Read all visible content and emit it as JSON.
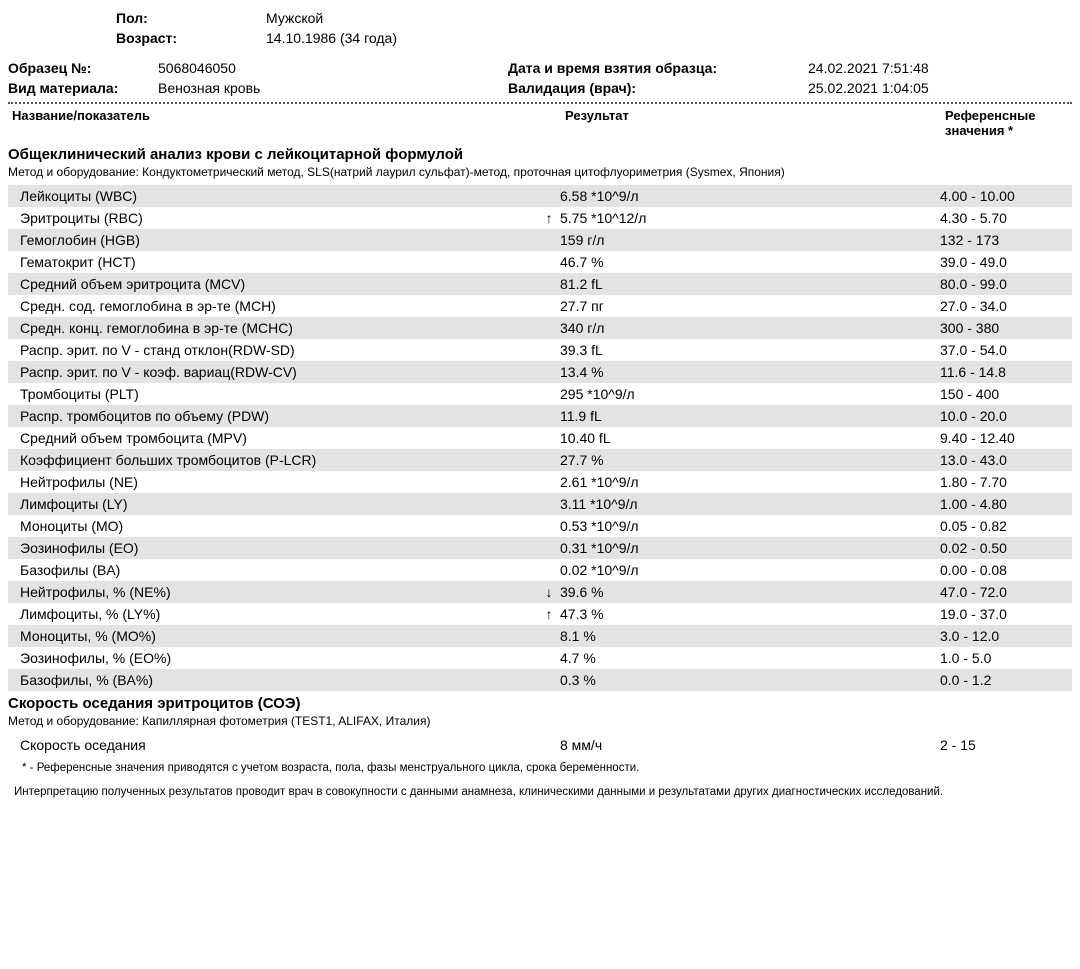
{
  "demographics": {
    "gender_label": "Пол:",
    "gender_value": "Мужской",
    "age_label": "Возраст:",
    "age_value": "14.10.1986 (34 года)"
  },
  "sample": {
    "id_label": "Образец №:",
    "id_value": "5068046050",
    "material_label": "Вид материала:",
    "material_value": "Венозная кровь",
    "collected_label": "Дата и время взятия образца:",
    "collected_value": "24.02.2021   7:51:48",
    "validated_label": "Валидация (врач):",
    "validated_value": "25.02.2021   1:04:05"
  },
  "headers": {
    "name": "Название/показатель",
    "result": "Результат",
    "ref": "Референсные значения *"
  },
  "sections": [
    {
      "title": "Общеклинический анализ крови с лейкоцитарной формулой",
      "method_label": "Метод и оборудование:  ",
      "method_text": "Кондуктометрический метод, SLS(натрий лаурил сульфат)-метод, проточная цитофлуориметрия (Sysmex, Япония)",
      "rows": [
        {
          "name": "Лейкоциты (WBC)",
          "flag": "",
          "result": "6.58 *10^9/л",
          "ref": "4.00 - 10.00",
          "striped": true
        },
        {
          "name": "Эритроциты (RBC)",
          "flag": "↑",
          "result": "5.75 *10^12/л",
          "ref": "4.30 - 5.70",
          "striped": false
        },
        {
          "name": "Гемоглобин (HGB)",
          "flag": "",
          "result": "159 г/л",
          "ref": "132 - 173",
          "striped": true
        },
        {
          "name": "Гематокрит (HCT)",
          "flag": "",
          "result": "46.7 %",
          "ref": "39.0 - 49.0",
          "striped": false
        },
        {
          "name": "Средний объем эритроцита (MCV)",
          "flag": "",
          "result": "81.2 fL",
          "ref": "80.0 - 99.0",
          "striped": true
        },
        {
          "name": "Средн. сод. гемоглобина в эр-те (MCH)",
          "flag": "",
          "result": "27.7 пг",
          "ref": "27.0 - 34.0",
          "striped": false
        },
        {
          "name": "Средн. конц. гемоглобина в эр-те (MCHC)",
          "flag": "",
          "result": "340 г/л",
          "ref": "300 - 380",
          "striped": true
        },
        {
          "name": "Распр. эрит. по V - станд отклон(RDW-SD)",
          "flag": "",
          "result": "39.3 fL",
          "ref": "37.0 - 54.0",
          "striped": false
        },
        {
          "name": "Распр. эрит. по V - коэф. вариац(RDW-CV)",
          "flag": "",
          "result": "13.4 %",
          "ref": "11.6 - 14.8",
          "striped": true
        },
        {
          "name": "Тромбоциты (PLT)",
          "flag": "",
          "result": "295 *10^9/л",
          "ref": "150 - 400",
          "striped": false
        },
        {
          "name": "Распр. тромбоцитов по объему (PDW)",
          "flag": "",
          "result": "11.9 fL",
          "ref": "10.0 - 20.0",
          "striped": true
        },
        {
          "name": "Средний объем тромбоцита (MPV)",
          "flag": "",
          "result": "10.40 fL",
          "ref": "9.40 - 12.40",
          "striped": false
        },
        {
          "name": "Коэффициент больших тромбоцитов (P-LCR)",
          "flag": "",
          "result": "27.7 %",
          "ref": "13.0 - 43.0",
          "striped": true
        },
        {
          "name": "Нейтрофилы (NE)",
          "flag": "",
          "result": "2.61 *10^9/л",
          "ref": "1.80 - 7.70",
          "striped": false
        },
        {
          "name": "Лимфоциты (LY)",
          "flag": "",
          "result": "3.11 *10^9/л",
          "ref": "1.00 - 4.80",
          "striped": true
        },
        {
          "name": "Моноциты (MO)",
          "flag": "",
          "result": "0.53 *10^9/л",
          "ref": "0.05 - 0.82",
          "striped": false
        },
        {
          "name": "Эозинофилы (EO)",
          "flag": "",
          "result": "0.31 *10^9/л",
          "ref": "0.02 - 0.50",
          "striped": true
        },
        {
          "name": "Базофилы (BA)",
          "flag": "",
          "result": "0.02 *10^9/л",
          "ref": "0.00 - 0.08",
          "striped": false
        },
        {
          "name": "Нейтрофилы, % (NE%)",
          "flag": "↓",
          "result": "39.6 %",
          "ref": "47.0 - 72.0",
          "striped": true
        },
        {
          "name": "Лимфоциты, % (LY%)",
          "flag": "↑",
          "result": "47.3 %",
          "ref": "19.0 - 37.0",
          "striped": false
        },
        {
          "name": "Моноциты, % (MO%)",
          "flag": "",
          "result": "8.1 %",
          "ref": "3.0 - 12.0",
          "striped": true
        },
        {
          "name": "Эозинофилы, % (EO%)",
          "flag": "",
          "result": "4.7 %",
          "ref": "1.0 - 5.0",
          "striped": false
        },
        {
          "name": "Базофилы, % (BA%)",
          "flag": "",
          "result": "0.3 %",
          "ref": "0.0 - 1.2",
          "striped": true
        }
      ]
    },
    {
      "title": "Скорость оседания эритроцитов (СОЭ)",
      "method_label": "Метод и оборудование:  ",
      "method_text": "Капиллярная фотометрия (TEST1, ALIFAX, Италия)",
      "rows": [
        {
          "name": "Скорость оседания",
          "flag": "",
          "result": "8 мм/ч",
          "ref": "2 - 15",
          "striped": false
        }
      ]
    }
  ],
  "footnotes": {
    "ref_note": "* - Референсные значения приводятся с учетом возраста, пола, фазы менструального цикла, срока беременности.",
    "interp_note": "Интерпретацию полученных результатов проводит врач в совокупности с данными анамнеза, клиническими данными и результатами других диагностических исследований."
  },
  "style": {
    "stripe_color": "#e3e3e3",
    "text_color": "#000000",
    "background": "#ffffff"
  }
}
